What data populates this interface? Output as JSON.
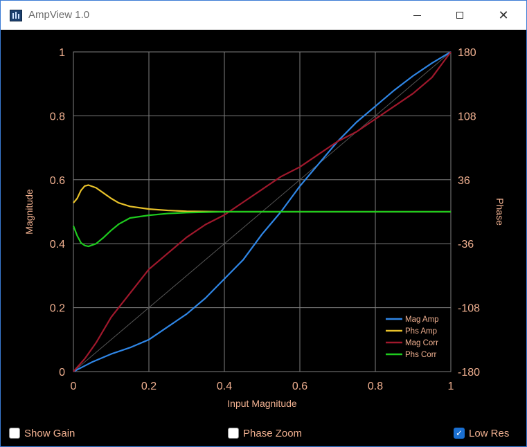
{
  "window": {
    "title": "AmpView 1.0"
  },
  "chart_data": {
    "type": "line",
    "xlabel": "Input Magnitude",
    "ylabel": "Magnitude",
    "y2label": "Phase",
    "xlim": [
      0,
      1
    ],
    "ylim": [
      0,
      1
    ],
    "y2lim": [
      -180,
      180
    ],
    "x_ticks": [
      "0",
      "0.2",
      "0.4",
      "0.6",
      "0.8",
      "1"
    ],
    "y_ticks": [
      "0",
      "0.2",
      "0.4",
      "0.6",
      "0.8",
      "1"
    ],
    "y2_ticks": [
      "-180",
      "-108",
      "-36",
      "36",
      "108",
      "180"
    ],
    "grid": true,
    "legend_position": "bottom-right",
    "colors": {
      "mag_amp": "#2f86e6",
      "phs_amp": "#e8c22a",
      "mag_corr": "#a0182c",
      "phs_corr": "#1ecb1e",
      "axis_text": "#f0b090",
      "grid": "#808080",
      "identity": "#555555"
    },
    "series": [
      {
        "name": "Mag Amp",
        "color_key": "mag_amp",
        "x": [
          0,
          0.05,
          0.1,
          0.15,
          0.2,
          0.25,
          0.3,
          0.35,
          0.4,
          0.45,
          0.5,
          0.55,
          0.6,
          0.65,
          0.7,
          0.75,
          0.8,
          0.85,
          0.9,
          0.95,
          1.0
        ],
        "y": [
          0,
          0.03,
          0.055,
          0.075,
          0.1,
          0.14,
          0.18,
          0.23,
          0.29,
          0.35,
          0.43,
          0.5,
          0.58,
          0.65,
          0.72,
          0.78,
          0.83,
          0.88,
          0.925,
          0.965,
          1.0
        ]
      },
      {
        "name": "Phs Amp",
        "color_key": "phs_amp",
        "axis": "y2",
        "x": [
          0,
          0.01,
          0.02,
          0.03,
          0.04,
          0.06,
          0.08,
          0.1,
          0.12,
          0.15,
          0.2,
          0.25,
          0.3,
          0.4,
          0.6,
          0.8,
          1.0
        ],
        "y": [
          10,
          15,
          24,
          29,
          30,
          27,
          21,
          15,
          10,
          6,
          3,
          1.5,
          0.5,
          0,
          0,
          0,
          0
        ]
      },
      {
        "name": "Mag Corr",
        "color_key": "mag_corr",
        "x": [
          0,
          0.03,
          0.06,
          0.1,
          0.14,
          0.2,
          0.25,
          0.3,
          0.35,
          0.4,
          0.45,
          0.5,
          0.55,
          0.6,
          0.65,
          0.7,
          0.75,
          0.8,
          0.85,
          0.9,
          0.95,
          1.0
        ],
        "y": [
          0,
          0.04,
          0.09,
          0.17,
          0.23,
          0.32,
          0.37,
          0.42,
          0.46,
          0.49,
          0.53,
          0.57,
          0.61,
          0.64,
          0.68,
          0.72,
          0.75,
          0.79,
          0.83,
          0.87,
          0.92,
          1.0
        ]
      },
      {
        "name": "Phs Corr",
        "color_key": "phs_corr",
        "axis": "y2",
        "x": [
          0,
          0.01,
          0.02,
          0.03,
          0.04,
          0.06,
          0.08,
          0.1,
          0.12,
          0.15,
          0.2,
          0.25,
          0.3,
          0.4,
          0.6,
          0.8,
          1.0
        ],
        "y": [
          -16,
          -27,
          -35,
          -38,
          -39,
          -36,
          -29,
          -21,
          -14,
          -7,
          -4,
          -2,
          -1,
          0,
          0,
          0,
          0
        ]
      }
    ]
  },
  "controls": {
    "show_gain": {
      "label": "Show Gain",
      "checked": false
    },
    "phase_zoom": {
      "label": "Phase Zoom",
      "checked": false
    },
    "low_res": {
      "label": "Low Res",
      "checked": true
    }
  }
}
